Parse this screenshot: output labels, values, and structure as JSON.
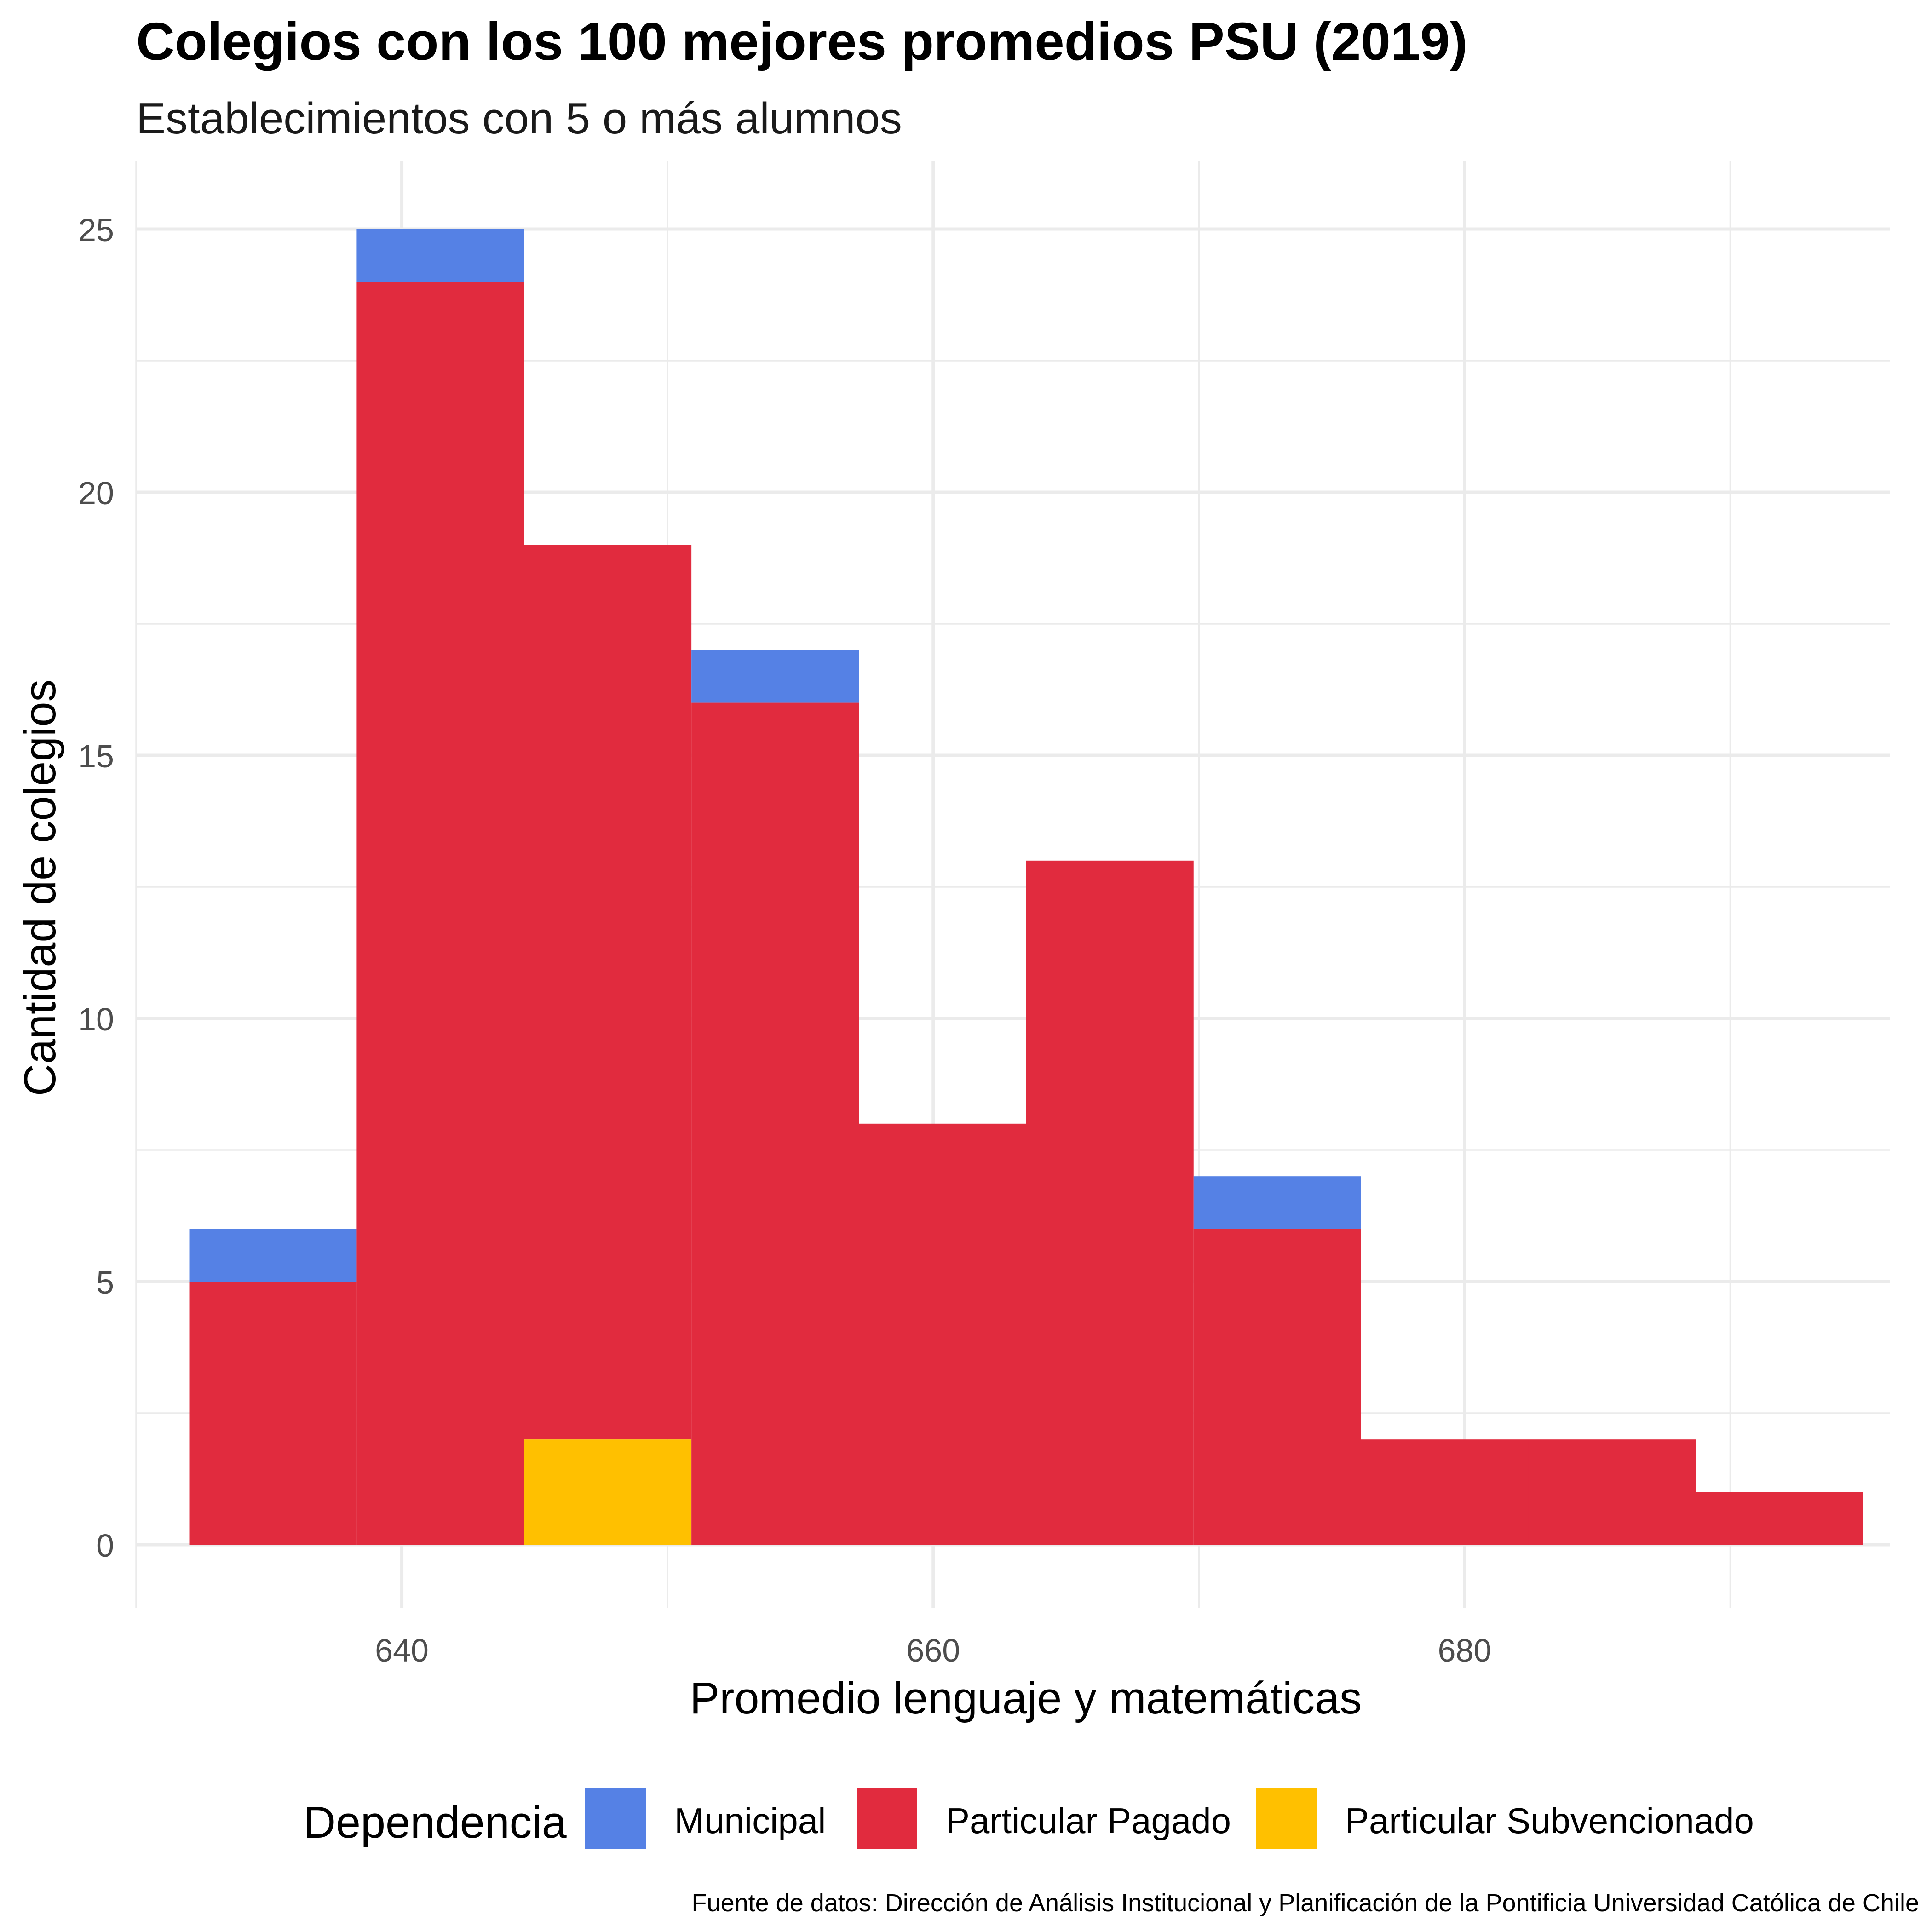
{
  "title": "Colegios con los 100 mejores promedios PSU (2019)",
  "subtitle": "Establecimientos con 5 o más alumnos",
  "caption": "Fuente de datos: Dirección de Análisis Institucional y Planificación de la Pontificia Universidad Católica de Chile",
  "legend": {
    "title": "Dependencia",
    "position": "bottom"
  },
  "chart_data": {
    "type": "bar",
    "subtype": "stacked-histogram",
    "xlabel": "Promedio lenguaje y matemáticas",
    "ylabel": "Cantidad de colegios",
    "xlim": [
      630,
      696
    ],
    "ylim": [
      0,
      25
    ],
    "x_ticks": [
      "640",
      "660",
      "680"
    ],
    "y_ticks": [
      "0",
      "5",
      "10",
      "15",
      "20",
      "25"
    ],
    "grid": true,
    "bins": [
      [
        632.0,
        638.3
      ],
      [
        638.3,
        644.6
      ],
      [
        644.6,
        650.9
      ],
      [
        650.9,
        657.2
      ],
      [
        657.2,
        663.5
      ],
      [
        663.5,
        669.8
      ],
      [
        669.8,
        676.1
      ],
      [
        676.1,
        682.4
      ],
      [
        682.4,
        688.7
      ],
      [
        688.7,
        695.0
      ]
    ],
    "series": [
      {
        "name": "Municipal",
        "color": "#5581e5",
        "values": [
          1,
          1,
          0,
          1,
          0,
          0,
          1,
          0,
          0,
          0
        ]
      },
      {
        "name": "Particular Pagado",
        "color": "#e12b3e",
        "values": [
          5,
          24,
          17,
          16,
          8,
          13,
          6,
          2,
          2,
          1
        ]
      },
      {
        "name": "Particular Subvencionado",
        "color": "#ffc000",
        "values": [
          0,
          0,
          2,
          0,
          0,
          0,
          0,
          0,
          0,
          0
        ]
      }
    ]
  }
}
